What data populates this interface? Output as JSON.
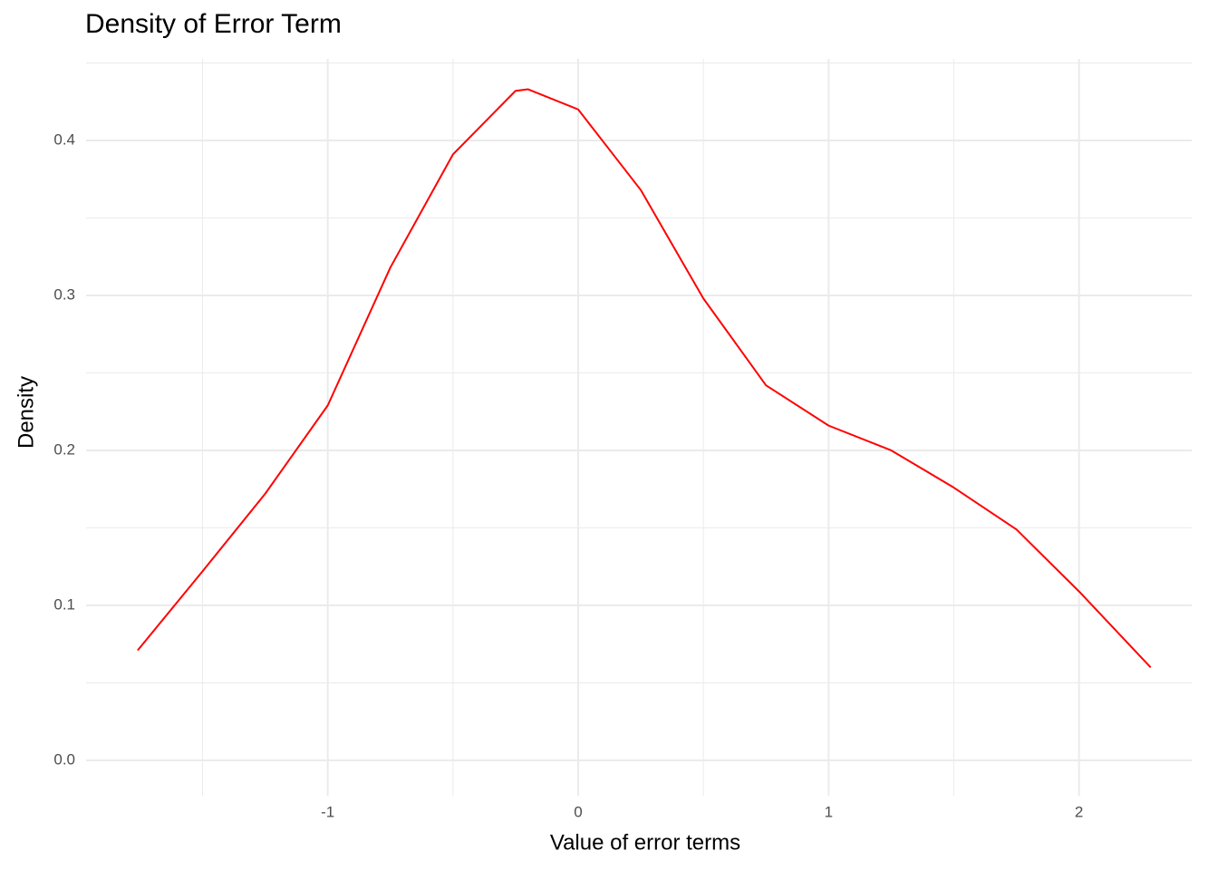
{
  "chart_data": {
    "type": "line",
    "title": "Density of Error Term",
    "x_label": "Value of error terms",
    "y_label": "Density",
    "x": [
      -1.759,
      -1.5,
      -1.25,
      -1.0,
      -0.75,
      -0.5,
      -0.25,
      -0.2,
      0,
      0.25,
      0.5,
      0.75,
      1.0,
      1.25,
      1.5,
      1.75,
      2.0,
      2.286
    ],
    "series": [
      {
        "color": "#ff0000",
        "values": [
          0.071,
          0.122,
          0.172,
          0.229,
          0.318,
          0.391,
          0.432,
          0.433,
          0.42,
          0.368,
          0.298,
          0.242,
          0.216,
          0.2,
          0.176,
          0.149,
          0.109,
          0.06
        ]
      }
    ],
    "xlim": [
      -1.965,
      2.45
    ],
    "ylim": [
      -0.0228,
      0.4526
    ],
    "xticks": [
      -1,
      0,
      1,
      2
    ],
    "yticks": [
      {
        "value": 0,
        "label": "0.0"
      },
      0.1,
      0.2,
      0.3,
      0.4
    ],
    "grid": true
  }
}
